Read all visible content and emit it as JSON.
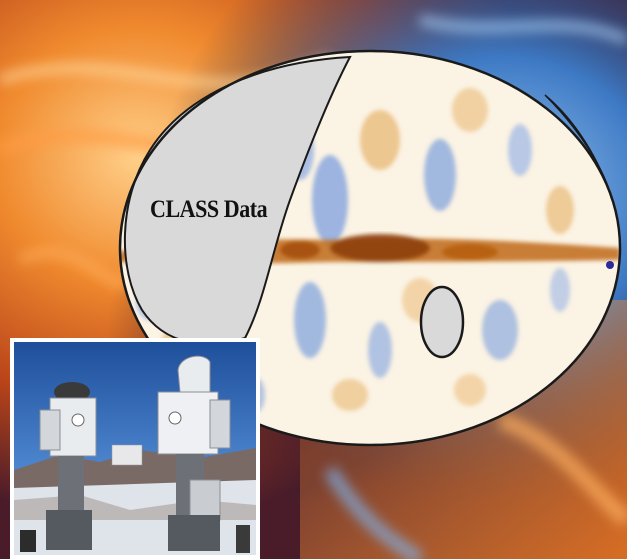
{
  "map": {
    "label": "CLASS Data"
  },
  "colors": {
    "background_warm": "#e8641c",
    "background_cool": "#2f6fbf",
    "map_masked_region": "#d9d9d9",
    "map_warm_emission": "#b45a10",
    "map_cool_emission": "#5f86cf",
    "map_outline": "#1a1a1a",
    "inset_sky": "#2c63b5"
  },
  "inset_photo": {
    "subject": "telescopes"
  }
}
